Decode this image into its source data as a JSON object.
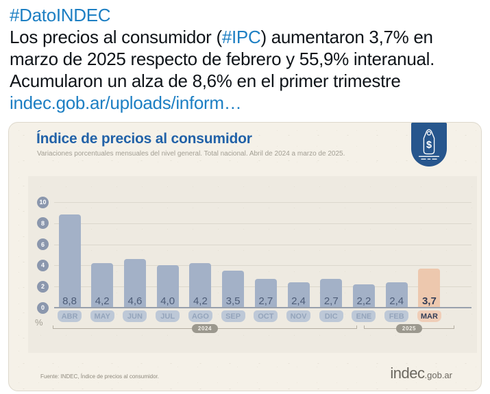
{
  "tweet": {
    "hashtag": "#DatoINDEC",
    "line1_pre": "Los precios al consumidor (",
    "line1_link": "#IPC",
    "line1_post": ") aumentaron 3,7% en",
    "line2": "marzo de 2025 respecto de febrero y 55,9% interanual.",
    "line3": "Acumularon un alza de 8,6% en el primer trimestre",
    "url": "indec.gob.ar/uploads/inform…"
  },
  "infographic": {
    "title": "Índice de precios al consumidor",
    "subtitle": "Variaciones porcentuales mensuales del nivel general. Total nacional. Abril de 2024 a marzo de 2025.",
    "unit_label": "%",
    "source": "Fuente: INDEC, Índice de precios al consumidor.",
    "logo_main": "indec",
    "logo_suffix": ".gob.ar",
    "icon": "price-tag-dollar-icon",
    "icon_dollar": "$"
  },
  "chart_data": {
    "type": "bar",
    "title": "Índice de precios al consumidor",
    "subtitle": "Variaciones porcentuales mensuales del nivel general. Total nacional. Abril de 2024 a marzo de 2025.",
    "xlabel": "",
    "ylabel": "%",
    "ylim": [
      0,
      10.5
    ],
    "y_ticks": [
      0,
      2,
      4,
      6,
      8,
      10
    ],
    "grid": true,
    "legend": "none",
    "categories": [
      "ABR",
      "MAY",
      "JUN",
      "JUL",
      "AGO",
      "SEP",
      "OCT",
      "NOV",
      "DIC",
      "ENE",
      "FEB",
      "MAR"
    ],
    "values": [
      8.8,
      4.2,
      4.6,
      4.0,
      4.2,
      3.5,
      2.7,
      2.4,
      2.7,
      2.2,
      2.4,
      3.7
    ],
    "value_labels": [
      "8,8",
      "4,2",
      "4,6",
      "4,0",
      "4,2",
      "3,5",
      "2,7",
      "2,4",
      "2,7",
      "2,2",
      "2,4",
      "3,7"
    ],
    "highlight_index": 11,
    "year_groups": [
      {
        "label": "2024",
        "start": 0,
        "end": 8
      },
      {
        "label": "2025",
        "start": 9,
        "end": 11
      }
    ],
    "colors": {
      "bar": "#a3b1c7",
      "bar_highlight": "#edc8ae",
      "value_text": "#4d5c77",
      "value_text_highlight": "#333e58",
      "month_pill": "#bdc8d7",
      "month_text": "#94a4bb",
      "month_pill_highlight": "#f0ceb8",
      "month_text_highlight": "#333e58",
      "y_badge": "#8b97ad",
      "gridline": "#dbd7cc",
      "zero_line": "#98a0ac",
      "title_blue": "#2262a8",
      "badge_blue": "#27568d"
    }
  }
}
